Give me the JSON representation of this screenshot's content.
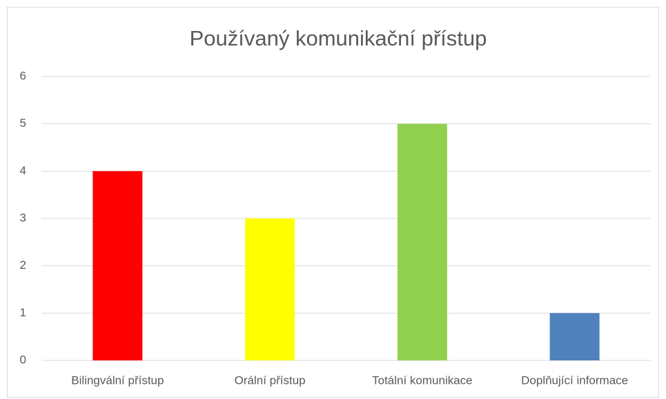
{
  "chart_data": {
    "type": "bar",
    "title": "Používaný komunikační přístup",
    "categories": [
      "Bilingvální přístup",
      "Orální přístup",
      "Totální komunikace",
      "Doplňující informace"
    ],
    "values": [
      4,
      3,
      5,
      1
    ],
    "colors": [
      "#ff0000",
      "#ffff00",
      "#92d050",
      "#4f81bd"
    ],
    "ylim": [
      0,
      6
    ],
    "yticks": [
      0,
      1,
      2,
      3,
      4,
      5,
      6
    ],
    "grid": true
  }
}
